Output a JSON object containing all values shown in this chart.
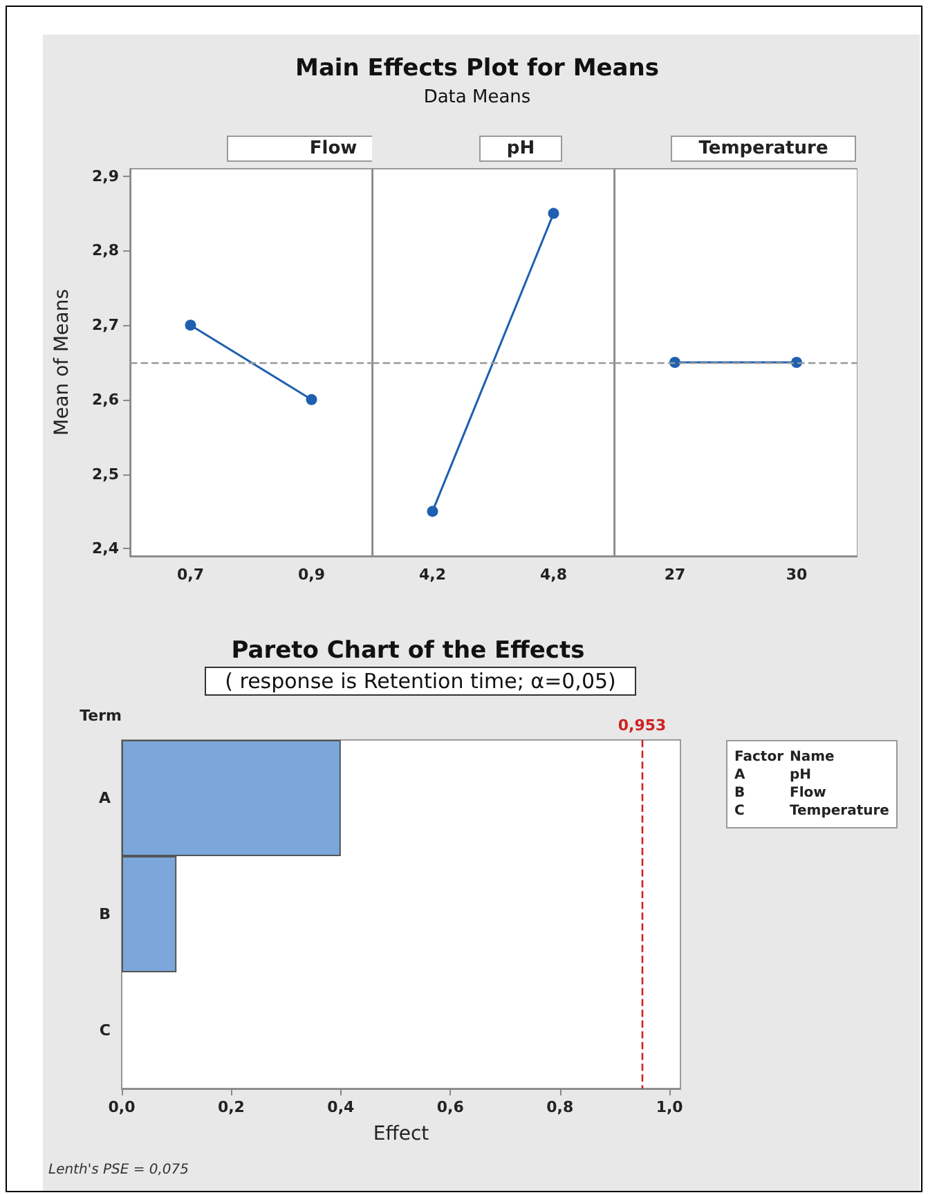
{
  "chart_data": [
    {
      "type": "other",
      "title": "Main Effects Plot for Means",
      "subtitle": "Data Means"
    },
    {
      "type": "line",
      "title": "Flow",
      "categories": [
        "0,7",
        "0,9"
      ],
      "values": [
        2.7,
        2.6
      ],
      "color": "#1f5fb0",
      "marker": "circle",
      "ylabel": "Mean of Means",
      "ylim": [
        2.39,
        2.91
      ],
      "yticks": [
        {
          "value": 2.4,
          "label": "2,4"
        },
        {
          "value": 2.5,
          "label": "2,5"
        },
        {
          "value": 2.6,
          "label": "2,6"
        },
        {
          "value": 2.7,
          "label": "2,7"
        },
        {
          "value": 2.8,
          "label": "2,8"
        },
        {
          "value": 2.9,
          "label": "2,9"
        }
      ],
      "ref_lines": [
        {
          "axis": "y",
          "value": 2.65,
          "color": "#999999",
          "line_style": "dashed"
        }
      ]
    },
    {
      "type": "line",
      "title": "pH",
      "categories": [
        "4,2",
        "4,8"
      ],
      "values": [
        2.45,
        2.85
      ],
      "color": "#1f5fb0",
      "marker": "circle",
      "ylim": [
        2.39,
        2.91
      ],
      "tick_labels": "x",
      "ref_lines": [
        {
          "axis": "y",
          "value": 2.65,
          "color": "#999999",
          "line_style": "dashed"
        }
      ]
    },
    {
      "type": "line",
      "title": "Temperature",
      "categories": [
        "27",
        "30"
      ],
      "values": [
        2.65,
        2.65
      ],
      "color": "#1f5fb0",
      "marker": "circle",
      "ylim": [
        2.39,
        2.91
      ],
      "tick_labels": "x",
      "ref_lines": [
        {
          "axis": "y",
          "value": 2.65,
          "color": "#999999",
          "line_style": "dashed"
        }
      ]
    },
    {
      "type": "bar",
      "orientation": "horizontal",
      "title": "Pareto Chart of the Effects",
      "subtitle": "( response is Retention time; α=0,05)",
      "xlabel": "Effect",
      "ylabel": "Term",
      "categories": [
        "A",
        "B",
        "C"
      ],
      "values": [
        0.4,
        0.1,
        0
      ],
      "color": "#7ba7da",
      "xlim": [
        0,
        1.02
      ],
      "xticks": [
        {
          "value": 0,
          "label": "0,0"
        },
        {
          "value": 0.2,
          "label": "0,2"
        },
        {
          "value": 0.4,
          "label": "0,4"
        },
        {
          "value": 0.6,
          "label": "0,6"
        },
        {
          "value": 0.8,
          "label": "0,8"
        },
        {
          "value": 1,
          "label": "1,0"
        }
      ],
      "ref_lines": [
        {
          "axis": "x",
          "value": 0.953,
          "label": "0,953",
          "color": "#cc2222",
          "line_style": "dashed"
        }
      ],
      "annotations": [
        "Factor",
        "Name",
        "A",
        "pH",
        "B",
        "Flow",
        "C",
        "Temperature",
        "Lenth's PSE = 0,075"
      ]
    }
  ]
}
